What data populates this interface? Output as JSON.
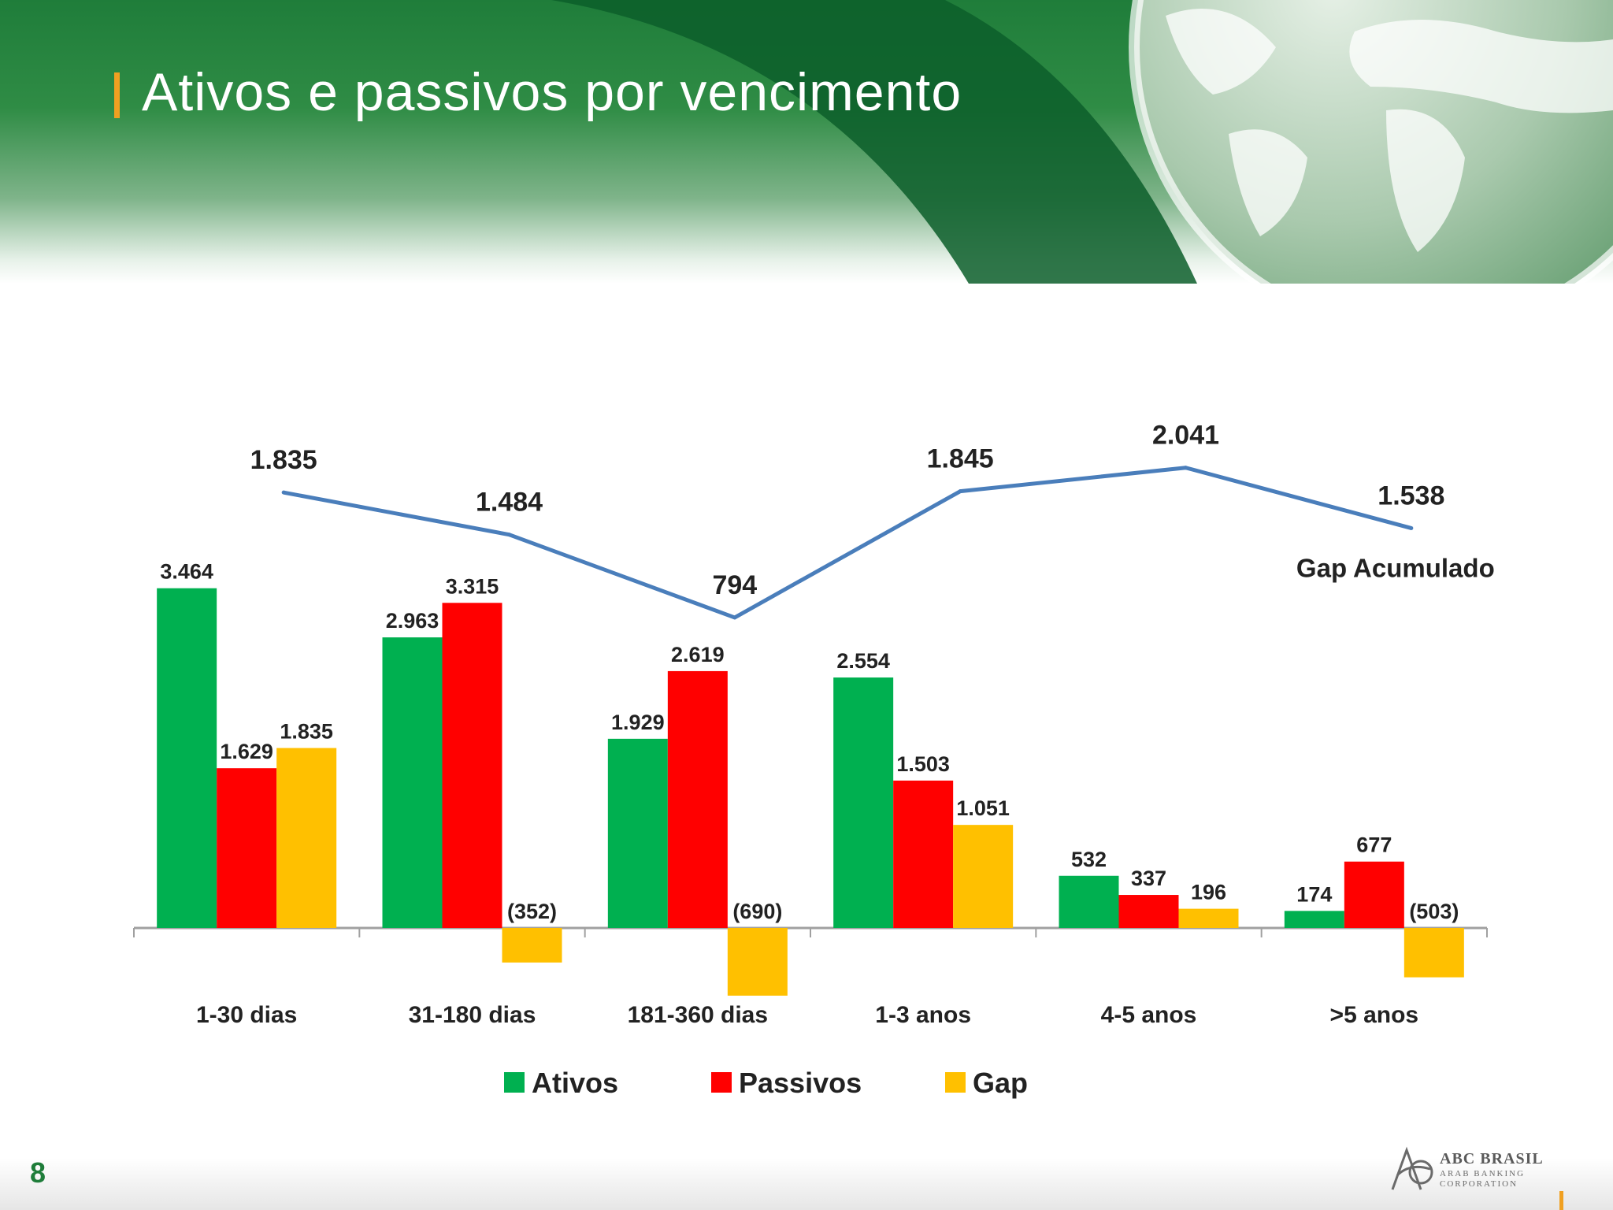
{
  "page": {
    "title": "Ativos e passivos por vencimento",
    "number": "8"
  },
  "logo": {
    "name": "ABC BRASIL",
    "line2": "ARAB BANKING",
    "line3": "CORPORATION"
  },
  "colors": {
    "ativos": "#00b050",
    "passivos": "#ff0000",
    "gap": "#ffc000",
    "line": "#4a7ebb",
    "accent": "#f0a021"
  },
  "chart_data": [
    {
      "type": "bar",
      "categories": [
        "1-30 dias",
        "31-180 dias",
        "181-360 dias",
        "1-3 anos",
        "4-5 anos",
        ">5 anos"
      ],
      "series": [
        {
          "name": "Ativos",
          "values": [
            3464,
            2963,
            1929,
            2554,
            532,
            174
          ],
          "labels": [
            "3.464",
            "2.963",
            "1.929",
            "2.554",
            "532",
            "174"
          ]
        },
        {
          "name": "Passivos",
          "values": [
            1629,
            3315,
            2619,
            1503,
            337,
            677
          ],
          "labels": [
            "1.629",
            "3.315",
            "2.619",
            "1.503",
            "337",
            "677"
          ]
        },
        {
          "name": "Gap",
          "values": [
            1835,
            -352,
            -690,
            1051,
            196,
            -503
          ],
          "labels": [
            "1.835",
            "(352)",
            "(690)",
            "1.051",
            "196",
            "(503)"
          ]
        }
      ],
      "legend": "bottom",
      "grid": false
    },
    {
      "type": "line",
      "categories": [
        "1-30 dias",
        "31-180 dias",
        "181-360 dias",
        "1-3 anos",
        "4-5 anos",
        ">5 anos"
      ],
      "series": [
        {
          "name": "Gap Acumulado",
          "values": [
            1835,
            1484,
            794,
            1845,
            2041,
            1538
          ],
          "labels": [
            "1.835",
            "1.484",
            "794",
            "1.845",
            "2.041",
            "1.538"
          ]
        }
      ]
    }
  ]
}
